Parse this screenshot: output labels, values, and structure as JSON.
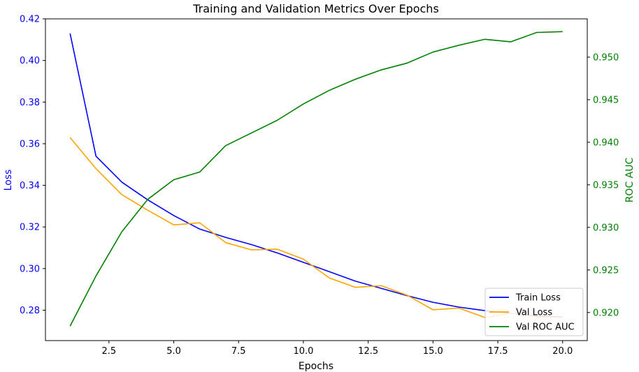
{
  "chart_data": {
    "type": "line",
    "title": "Training and Validation Metrics Over Epochs",
    "xlabel": "Epochs",
    "ylabel_left": "Loss",
    "ylabel_right": "ROC AUC",
    "xlim": [
      0.05,
      20.95
    ],
    "ylim_left": [
      0.2654,
      0.42
    ],
    "ylim_right": [
      0.9167,
      0.9545
    ],
    "xticks": [
      2.5,
      5.0,
      7.5,
      10.0,
      12.5,
      15.0,
      17.5,
      20.0
    ],
    "xtick_labels": [
      "2.5",
      "5.0",
      "7.5",
      "10.0",
      "12.5",
      "15.0",
      "17.5",
      "20.0"
    ],
    "yticks_left": [
      0.28,
      0.3,
      0.32,
      0.34,
      0.36,
      0.38,
      0.4,
      0.42
    ],
    "ytick_labels_left": [
      "0.28",
      "0.30",
      "0.32",
      "0.34",
      "0.36",
      "0.38",
      "0.40",
      "0.42"
    ],
    "yticks_right": [
      0.92,
      0.925,
      0.93,
      0.935,
      0.94,
      0.945,
      0.95
    ],
    "ytick_labels_right": [
      "0.920",
      "0.925",
      "0.930",
      "0.935",
      "0.940",
      "0.945",
      "0.950"
    ],
    "x": [
      1,
      2,
      3,
      4,
      5,
      6,
      7,
      8,
      9,
      10,
      11,
      12,
      13,
      14,
      15,
      16,
      17,
      18,
      19,
      20
    ],
    "series": [
      {
        "name": "Train Loss",
        "axis": "left",
        "color": "#0000ff",
        "values": [
          0.413,
          0.354,
          0.3415,
          0.333,
          0.3255,
          0.319,
          0.315,
          0.3115,
          0.3075,
          0.303,
          0.2985,
          0.294,
          0.2905,
          0.287,
          0.2838,
          0.2815,
          0.2798,
          0.2785,
          0.2772,
          0.2767
        ]
      },
      {
        "name": "Val Loss",
        "axis": "left",
        "color": "#ffa500",
        "values": [
          0.363,
          0.348,
          0.3355,
          0.328,
          0.321,
          0.322,
          0.3125,
          0.309,
          0.3093,
          0.3045,
          0.2955,
          0.291,
          0.2918,
          0.2872,
          0.2802,
          0.281,
          0.2765,
          0.2785,
          0.2768,
          0.2765
        ]
      },
      {
        "name": "Val ROC AUC",
        "axis": "right",
        "color": "#008000",
        "values": [
          0.9184,
          0.9243,
          0.9295,
          0.9333,
          0.9356,
          0.9365,
          0.9396,
          0.9411,
          0.9426,
          0.9445,
          0.9461,
          0.9474,
          0.9485,
          0.9493,
          0.9506,
          0.9514,
          0.9521,
          0.9518,
          0.9529,
          0.953
        ]
      }
    ],
    "legend_position": "lower-right",
    "grid": false
  }
}
